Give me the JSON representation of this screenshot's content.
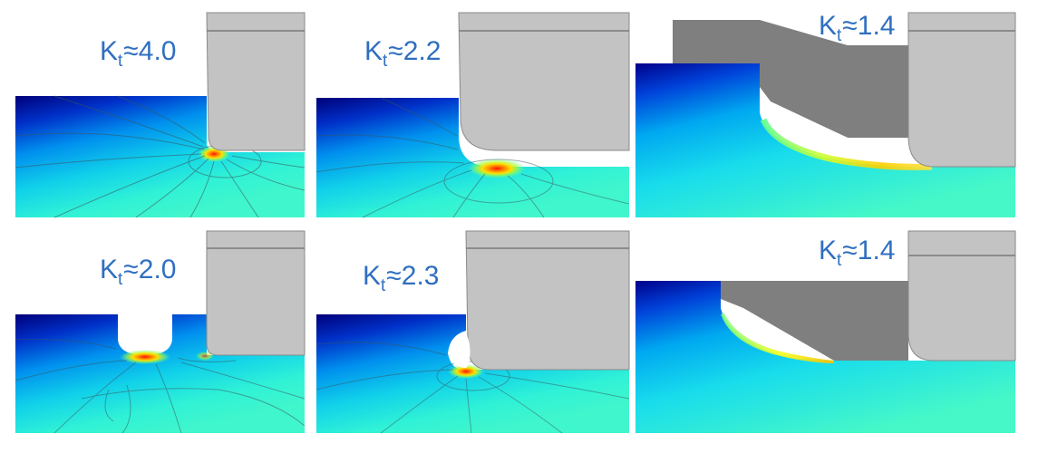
{
  "panels": [
    {
      "id": "p1",
      "k_symbol": "K",
      "subscript": "t",
      "approx": "≈",
      "value": "4.0"
    },
    {
      "id": "p2",
      "k_symbol": "K",
      "subscript": "t",
      "approx": "≈",
      "value": "2.2"
    },
    {
      "id": "p3",
      "k_symbol": "K",
      "subscript": "t",
      "approx": "≈",
      "value": "1.4"
    },
    {
      "id": "p4",
      "k_symbol": "K",
      "subscript": "t",
      "approx": "≈",
      "value": "2.0"
    },
    {
      "id": "p5",
      "k_symbol": "K",
      "subscript": "t",
      "approx": "≈",
      "value": "2.3"
    },
    {
      "id": "p6",
      "k_symbol": "K",
      "subscript": "t",
      "approx": "≈",
      "value": "1.4"
    }
  ],
  "colors": {
    "label_text": "#2f6fc0",
    "tool_light_gray": "#c3c3c3",
    "tool_dark_gray": "#7f7f7f",
    "stress_low": "#00008c",
    "stress_mid": "#00e0d0",
    "stress_high": "#ff2000"
  }
}
